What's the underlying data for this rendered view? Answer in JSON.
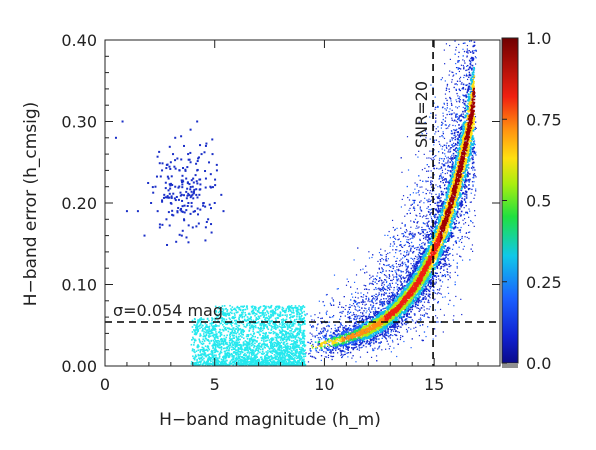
{
  "chart_data": {
    "type": "scatter",
    "title": "",
    "xlabel": "H−band magnitude (h_m)",
    "ylabel": "H−band error (h_cmsig)",
    "xlim": [
      0,
      18
    ],
    "ylim": [
      0,
      0.4
    ],
    "x_ticks": [
      0,
      5,
      10,
      15
    ],
    "x_tick_labels": [
      "0",
      "5",
      "10",
      "15"
    ],
    "y_ticks": [
      0.0,
      0.1,
      0.2,
      0.3,
      0.4
    ],
    "y_tick_labels": [
      "0.00",
      "0.10",
      "0.20",
      "0.30",
      "0.40"
    ],
    "grid": false,
    "reference_lines": [
      {
        "orientation": "horizontal",
        "value": 0.054,
        "style": "dashed",
        "label": "σ=0.054 mag"
      },
      {
        "orientation": "vertical",
        "value": 14.95,
        "style": "dashed",
        "label": "SNR=20"
      }
    ],
    "series": [
      {
        "role": "bright stars",
        "color": "#1a2fc8",
        "points": [
          [
            0.8,
            0.3
          ],
          [
            0.5,
            0.28
          ],
          [
            1.0,
            0.19
          ],
          [
            1.5,
            0.19
          ],
          [
            1.8,
            0.16
          ],
          [
            2.1,
            0.2
          ],
          [
            2.3,
            0.22
          ],
          [
            2.4,
            0.19
          ],
          [
            2.6,
            0.24
          ],
          [
            2.7,
            0.21
          ],
          [
            2.8,
            0.18
          ],
          [
            2.9,
            0.23
          ],
          [
            3.0,
            0.2
          ],
          [
            3.1,
            0.26
          ],
          [
            3.2,
            0.22
          ],
          [
            3.3,
            0.19
          ],
          [
            3.4,
            0.24
          ],
          [
            3.5,
            0.21
          ],
          [
            3.6,
            0.27
          ],
          [
            3.6,
            0.18
          ],
          [
            3.7,
            0.23
          ],
          [
            3.8,
            0.2
          ],
          [
            3.9,
            0.25
          ],
          [
            3.9,
            0.29
          ],
          [
            4.0,
            0.22
          ],
          [
            4.1,
            0.19
          ],
          [
            4.2,
            0.24
          ],
          [
            4.2,
            0.3
          ],
          [
            4.3,
            0.21
          ],
          [
            4.4,
            0.26
          ],
          [
            4.5,
            0.2
          ],
          [
            4.6,
            0.23
          ],
          [
            4.7,
            0.18
          ],
          [
            4.8,
            0.22
          ],
          [
            5.0,
            0.2
          ],
          [
            5.1,
            0.24
          ],
          [
            5.3,
            0.21
          ],
          [
            5.4,
            0.19
          ],
          [
            3.5,
            0.16
          ],
          [
            4.0,
            0.17
          ],
          [
            2.5,
            0.17
          ],
          [
            3.2,
            0.28
          ],
          [
            4.6,
            0.27
          ],
          [
            3.0,
            0.25
          ],
          [
            4.9,
            0.26
          ]
        ]
      },
      {
        "role": "cyan cluster",
        "color": "#25e8ee",
        "x_range": [
          3.9,
          9.1
        ],
        "y_range": [
          0.002,
          0.075
        ]
      },
      {
        "role": "faint star density",
        "colormap": "rainbow",
        "x_range": [
          9.0,
          16.9
        ],
        "y_range": [
          0.01,
          0.4
        ]
      }
    ],
    "colorbar": {
      "range": [
        0.0,
        1.0
      ],
      "ticks": [
        0.0,
        0.25,
        0.5,
        0.75,
        1.0
      ],
      "tick_labels": [
        "0.0",
        "0.25",
        "0.5",
        "0.75",
        "1.0"
      ]
    }
  }
}
